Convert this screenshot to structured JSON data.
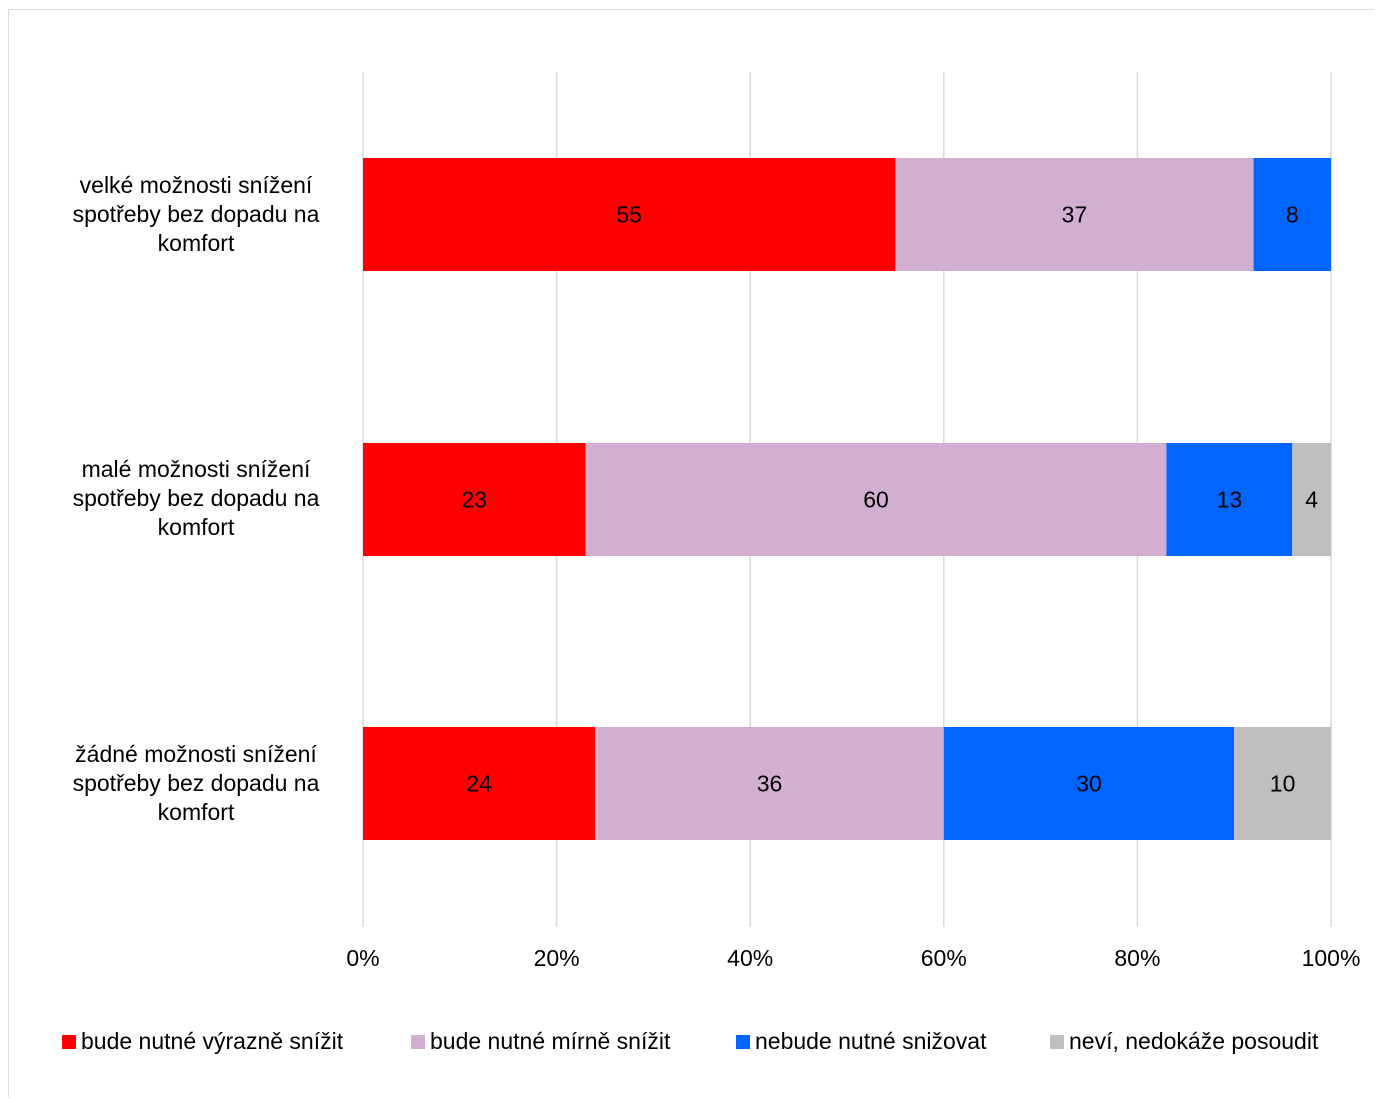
{
  "chart_data": {
    "type": "bar",
    "orientation": "horizontal",
    "stacked": true,
    "categories": [
      "velké možnosti snížení spotřeby bez dopadu na komfort",
      "malé možnosti snížení spotřeby bez dopadu na komfort",
      "žádné možnosti snížení spotřeby bez dopadu na komfort"
    ],
    "series": [
      {
        "name": "bude nutné výrazně snížit",
        "color": "#ff0000",
        "values": [
          55,
          23,
          24
        ]
      },
      {
        "name": "bude nutné mírně snížit",
        "color": "#d2afd0",
        "values": [
          37,
          60,
          36
        ]
      },
      {
        "name": "nebude nutné snižovat",
        "color": "#0066ff",
        "values": [
          8,
          13,
          30
        ]
      },
      {
        "name": "neví, nedokáže posoudit",
        "color": "#bfbfbf",
        "values": [
          0,
          4,
          10
        ]
      }
    ],
    "x_ticks": [
      "0%",
      "20%",
      "40%",
      "60%",
      "80%",
      "100%"
    ],
    "xlim": [
      0,
      100
    ],
    "grid": true,
    "legend_position": "bottom",
    "title": "",
    "xlabel": "",
    "ylabel": ""
  }
}
